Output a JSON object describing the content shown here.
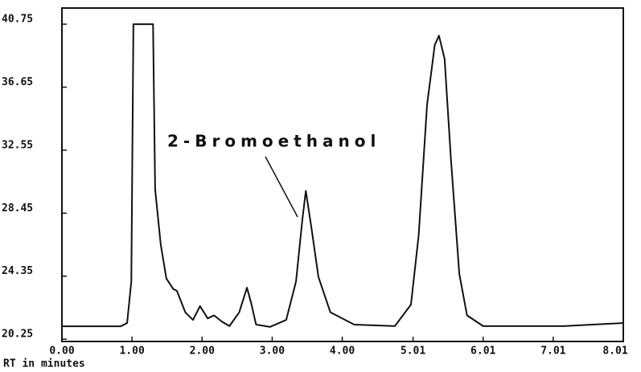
{
  "chart_data": {
    "type": "line",
    "annotation": "2-Bromoethanol",
    "x_label": "RT in minutes",
    "color": "#111111",
    "x": [
      0,
      0.84,
      0.93,
      0.99,
      1.02,
      1.3,
      1.33,
      1.41,
      1.49,
      1.59,
      1.64,
      1.76,
      1.87,
      1.97,
      2.08,
      2.17,
      2.28,
      2.39,
      2.53,
      2.64,
      2.7,
      2.77,
      2.97,
      3.2,
      3.34,
      3.43,
      3.48,
      3.56,
      3.66,
      3.83,
      4.17,
      4.75,
      4.98,
      5.09,
      5.21,
      5.32,
      5.38,
      5.46,
      5.55,
      5.67,
      5.78,
      6.01,
      7.16,
      8.01
    ],
    "values": [
      21.09,
      21.09,
      21.3,
      24.0,
      40.75,
      40.75,
      30.0,
      26.4,
      24.2,
      23.5,
      23.4,
      22.0,
      21.5,
      22.4,
      21.6,
      21.8,
      21.4,
      21.1,
      22.0,
      23.6,
      22.6,
      21.2,
      21.05,
      21.5,
      24.0,
      28.0,
      29.9,
      27.5,
      24.3,
      22.0,
      21.2,
      21.1,
      22.5,
      27.0,
      35.5,
      39.4,
      40.0,
      38.5,
      32.0,
      24.5,
      21.8,
      21.1,
      21.1,
      21.3
    ],
    "xlim": [
      0,
      8.01
    ],
    "ylim": [
      20.1,
      41.8
    ],
    "xticks": [
      {
        "value": 0,
        "label": "0.00"
      },
      {
        "value": 1,
        "label": "1.00"
      },
      {
        "value": 2,
        "label": "2.00"
      },
      {
        "value": 3,
        "label": "3.00"
      },
      {
        "value": 4,
        "label": "4.00"
      },
      5.01,
      6.01,
      7.01,
      8.01
    ],
    "yticks": [
      20.25,
      24.35,
      28.45,
      32.55,
      36.65,
      40.75
    ]
  }
}
